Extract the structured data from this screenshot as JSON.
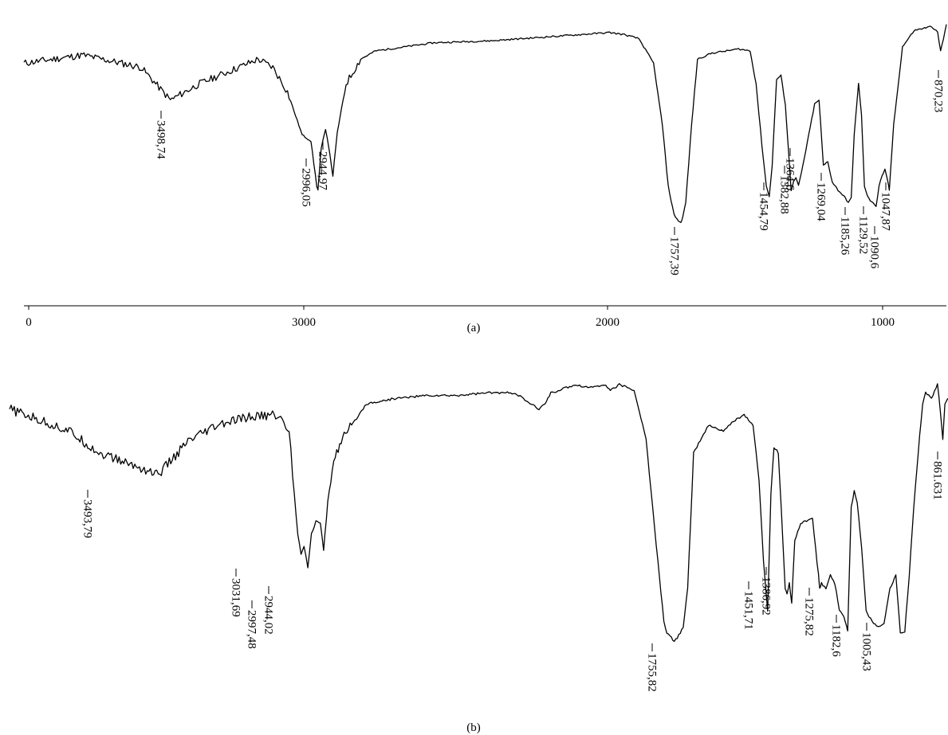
{
  "chart_data": [
    {
      "type": "line",
      "panel_label": "(a)",
      "x_axis_ticks": [
        "0",
        "3000",
        "2000",
        "1000"
      ],
      "annotations": [
        "3498,74",
        "2996,05",
        "2944,97",
        "1757,39",
        "1454,79",
        "1382,88",
        "1364,6",
        "1269,04",
        "1185,26",
        "1129,52",
        "1090,6",
        "1047,87",
        "870,23"
      ],
      "series": [
        {
          "x": [
            4000,
            3800,
            3600,
            3500,
            3400,
            3300,
            3200,
            3150,
            3100,
            3050,
            3020,
            3000,
            2996,
            2985,
            2970,
            2960,
            2945,
            2930,
            2900,
            2850,
            2800,
            2600,
            2400,
            2200,
            2100,
            2000,
            1950,
            1900,
            1850,
            1820,
            1800,
            1780,
            1765,
            1757,
            1750,
            1740,
            1720,
            1700,
            1650,
            1600,
            1560,
            1520,
            1500,
            1480,
            1465,
            1455,
            1445,
            1430,
            1415,
            1400,
            1385,
            1380,
            1372,
            1364,
            1355,
            1340,
            1320,
            1300,
            1285,
            1270,
            1255,
            1240,
            1220,
            1200,
            1185,
            1175,
            1165,
            1150,
            1140,
            1130,
            1120,
            1110,
            1100,
            1090,
            1080,
            1070,
            1060,
            1050,
            1045,
            1030,
            1000,
            960,
            930,
            900,
            880,
            870,
            860,
            850
          ],
          "y": [
            0.8,
            0.84,
            0.78,
            0.62,
            0.7,
            0.76,
            0.82,
            0.78,
            0.66,
            0.45,
            0.42,
            0.2,
            0.18,
            0.38,
            0.48,
            0.4,
            0.25,
            0.46,
            0.7,
            0.82,
            0.86,
            0.9,
            0.91,
            0.93,
            0.94,
            0.95,
            0.94,
            0.92,
            0.8,
            0.5,
            0.2,
            0.06,
            0.03,
            0.02,
            0.05,
            0.12,
            0.5,
            0.82,
            0.85,
            0.86,
            0.87,
            0.86,
            0.7,
            0.4,
            0.2,
            0.15,
            0.3,
            0.72,
            0.74,
            0.6,
            0.28,
            0.18,
            0.22,
            0.24,
            0.2,
            0.3,
            0.45,
            0.6,
            0.62,
            0.3,
            0.32,
            0.22,
            0.18,
            0.15,
            0.12,
            0.14,
            0.45,
            0.7,
            0.55,
            0.2,
            0.15,
            0.13,
            0.12,
            0.1,
            0.2,
            0.25,
            0.28,
            0.22,
            0.18,
            0.5,
            0.88,
            0.96,
            0.97,
            0.98,
            0.95,
            0.86,
            0.92,
            0.99
          ]
        }
      ]
    },
    {
      "type": "line",
      "panel_label": "(b)",
      "annotations": [
        "3493,79",
        "3031,69",
        "2997,48",
        "2944,02",
        "1755,82",
        "1451,71",
        "1386,92",
        "1275,82",
        "1182,6",
        "1005,43",
        "861.631"
      ],
      "series": [
        {
          "x": [
            4000,
            3900,
            3800,
            3700,
            3600,
            3500,
            3400,
            3300,
            3200,
            3100,
            3060,
            3031,
            3020,
            3010,
            2997,
            2985,
            2970,
            2955,
            2944,
            2930,
            2910,
            2880,
            2850,
            2800,
            2700,
            2600,
            2500,
            2400,
            2300,
            2250,
            2220,
            2200,
            2180,
            2150,
            2100,
            2050,
            2000,
            1980,
            1950,
            1900,
            1860,
            1820,
            1800,
            1790,
            1775,
            1765,
            1755,
            1745,
            1735,
            1720,
            1700,
            1650,
            1600,
            1560,
            1530,
            1500,
            1480,
            1465,
            1451,
            1440,
            1430,
            1415,
            1400,
            1392,
            1386,
            1378,
            1370,
            1360,
            1340,
            1320,
            1300,
            1290,
            1280,
            1276,
            1270,
            1255,
            1240,
            1225,
            1210,
            1195,
            1185,
            1182,
            1170,
            1160,
            1150,
            1135,
            1120,
            1100,
            1080,
            1060,
            1040,
            1020,
            1005,
            990,
            975,
            960,
            945,
            930,
            920,
            900,
            880,
            870,
            862,
            855,
            845
          ],
          "y": [
            0.86,
            0.82,
            0.78,
            0.7,
            0.66,
            0.62,
            0.74,
            0.8,
            0.83,
            0.84,
            0.78,
            0.4,
            0.33,
            0.36,
            0.28,
            0.4,
            0.45,
            0.44,
            0.34,
            0.52,
            0.68,
            0.75,
            0.8,
            0.88,
            0.9,
            0.91,
            0.91,
            0.92,
            0.92,
            0.88,
            0.86,
            0.88,
            0.92,
            0.93,
            0.95,
            0.94,
            0.95,
            0.93,
            0.95,
            0.93,
            0.75,
            0.3,
            0.08,
            0.04,
            0.02,
            0.01,
            0.02,
            0.04,
            0.06,
            0.2,
            0.7,
            0.8,
            0.78,
            0.82,
            0.84,
            0.8,
            0.6,
            0.3,
            0.12,
            0.55,
            0.72,
            0.7,
            0.38,
            0.2,
            0.18,
            0.22,
            0.15,
            0.38,
            0.44,
            0.45,
            0.46,
            0.35,
            0.25,
            0.2,
            0.22,
            0.2,
            0.25,
            0.22,
            0.12,
            0.1,
            0.06,
            0.05,
            0.5,
            0.56,
            0.52,
            0.35,
            0.12,
            0.08,
            0.06,
            0.07,
            0.2,
            0.25,
            0.04,
            0.04,
            0.25,
            0.5,
            0.7,
            0.88,
            0.92,
            0.9,
            0.95,
            0.85,
            0.75,
            0.88,
            0.9
          ]
        }
      ]
    }
  ]
}
